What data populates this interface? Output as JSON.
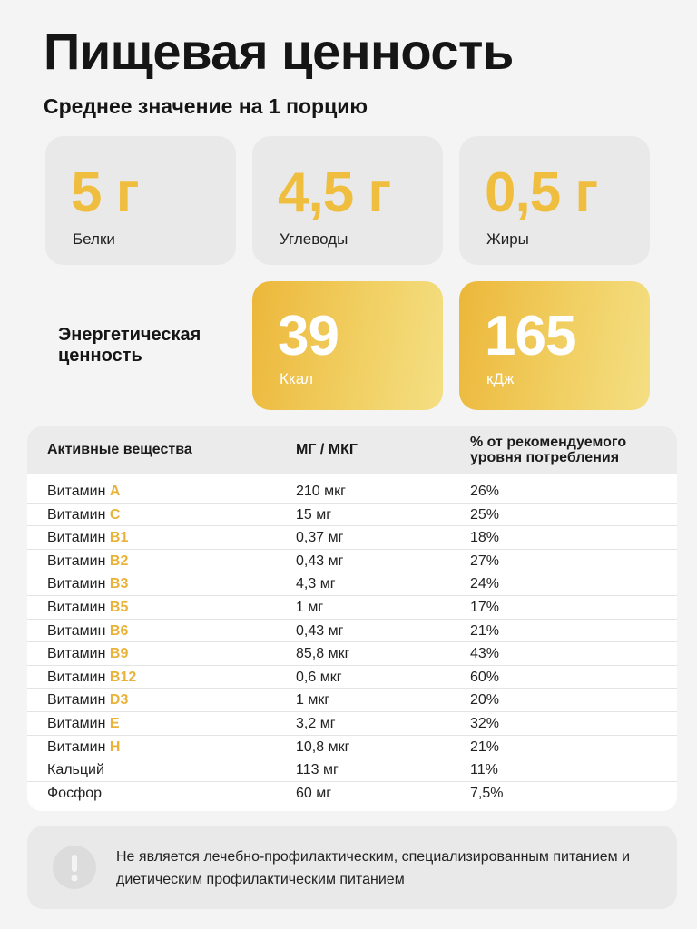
{
  "title": "Пищевая ценность",
  "subtitle": "Среднее значение на 1 порцию",
  "macros": [
    {
      "value": "5 г",
      "label": "Белки"
    },
    {
      "value": "4,5 г",
      "label": "Углеводы"
    },
    {
      "value": "0,5 г",
      "label": "Жиры"
    }
  ],
  "energy": {
    "label": "Энергетическая ценность",
    "kcal": {
      "value": "39",
      "unit": "Ккал"
    },
    "kj": {
      "value": "165",
      "unit": "кДж"
    }
  },
  "table": {
    "headers": [
      "Активные вещества",
      "МГ / МКГ",
      "% от рекомендуемого уровня потребления"
    ],
    "rows": [
      {
        "prefix": "Витамин",
        "highlight": "A",
        "amount": "210 мкг",
        "percent": "26%"
      },
      {
        "prefix": "Витамин",
        "highlight": "C",
        "amount": "15 мг",
        "percent": "25%"
      },
      {
        "prefix": "Витамин",
        "highlight": "B1",
        "amount": "0,37 мг",
        "percent": "18%"
      },
      {
        "prefix": "Витамин",
        "highlight": "B2",
        "amount": "0,43 мг",
        "percent": "27%"
      },
      {
        "prefix": "Витамин",
        "highlight": "B3",
        "amount": "4,3 мг",
        "percent": "24%"
      },
      {
        "prefix": "Витамин",
        "highlight": "B5",
        "amount": "1 мг",
        "percent": "17%"
      },
      {
        "prefix": "Витамин",
        "highlight": "B6",
        "amount": "0,43 мг",
        "percent": "21%"
      },
      {
        "prefix": "Витамин",
        "highlight": "B9",
        "amount": "85,8 мкг",
        "percent": "43%"
      },
      {
        "prefix": "Витамин",
        "highlight": "B12",
        "amount": "0,6 мкг",
        "percent": "60%"
      },
      {
        "prefix": "Витамин",
        "highlight": "D3",
        "amount": "1 мкг",
        "percent": "20%"
      },
      {
        "prefix": "Витамин",
        "highlight": "E",
        "amount": "3,2 мг",
        "percent": "32%"
      },
      {
        "prefix": "Витамин",
        "highlight": "H",
        "amount": "10,8 мкг",
        "percent": "21%"
      },
      {
        "prefix": "Кальций",
        "highlight": "",
        "amount": "113 мг",
        "percent": "11%"
      },
      {
        "prefix": "Фосфор",
        "highlight": "",
        "amount": "60 мг",
        "percent": "7,5%"
      }
    ]
  },
  "note": {
    "icon": "exclamation-icon",
    "text": "Не является лечебно-профилактическим, специализированным питанием и диетическим профилактическим питанием"
  },
  "colors": {
    "accent": "#f0be3f",
    "card_grey": "#e9e9e9",
    "background": "#f4f4f4"
  }
}
